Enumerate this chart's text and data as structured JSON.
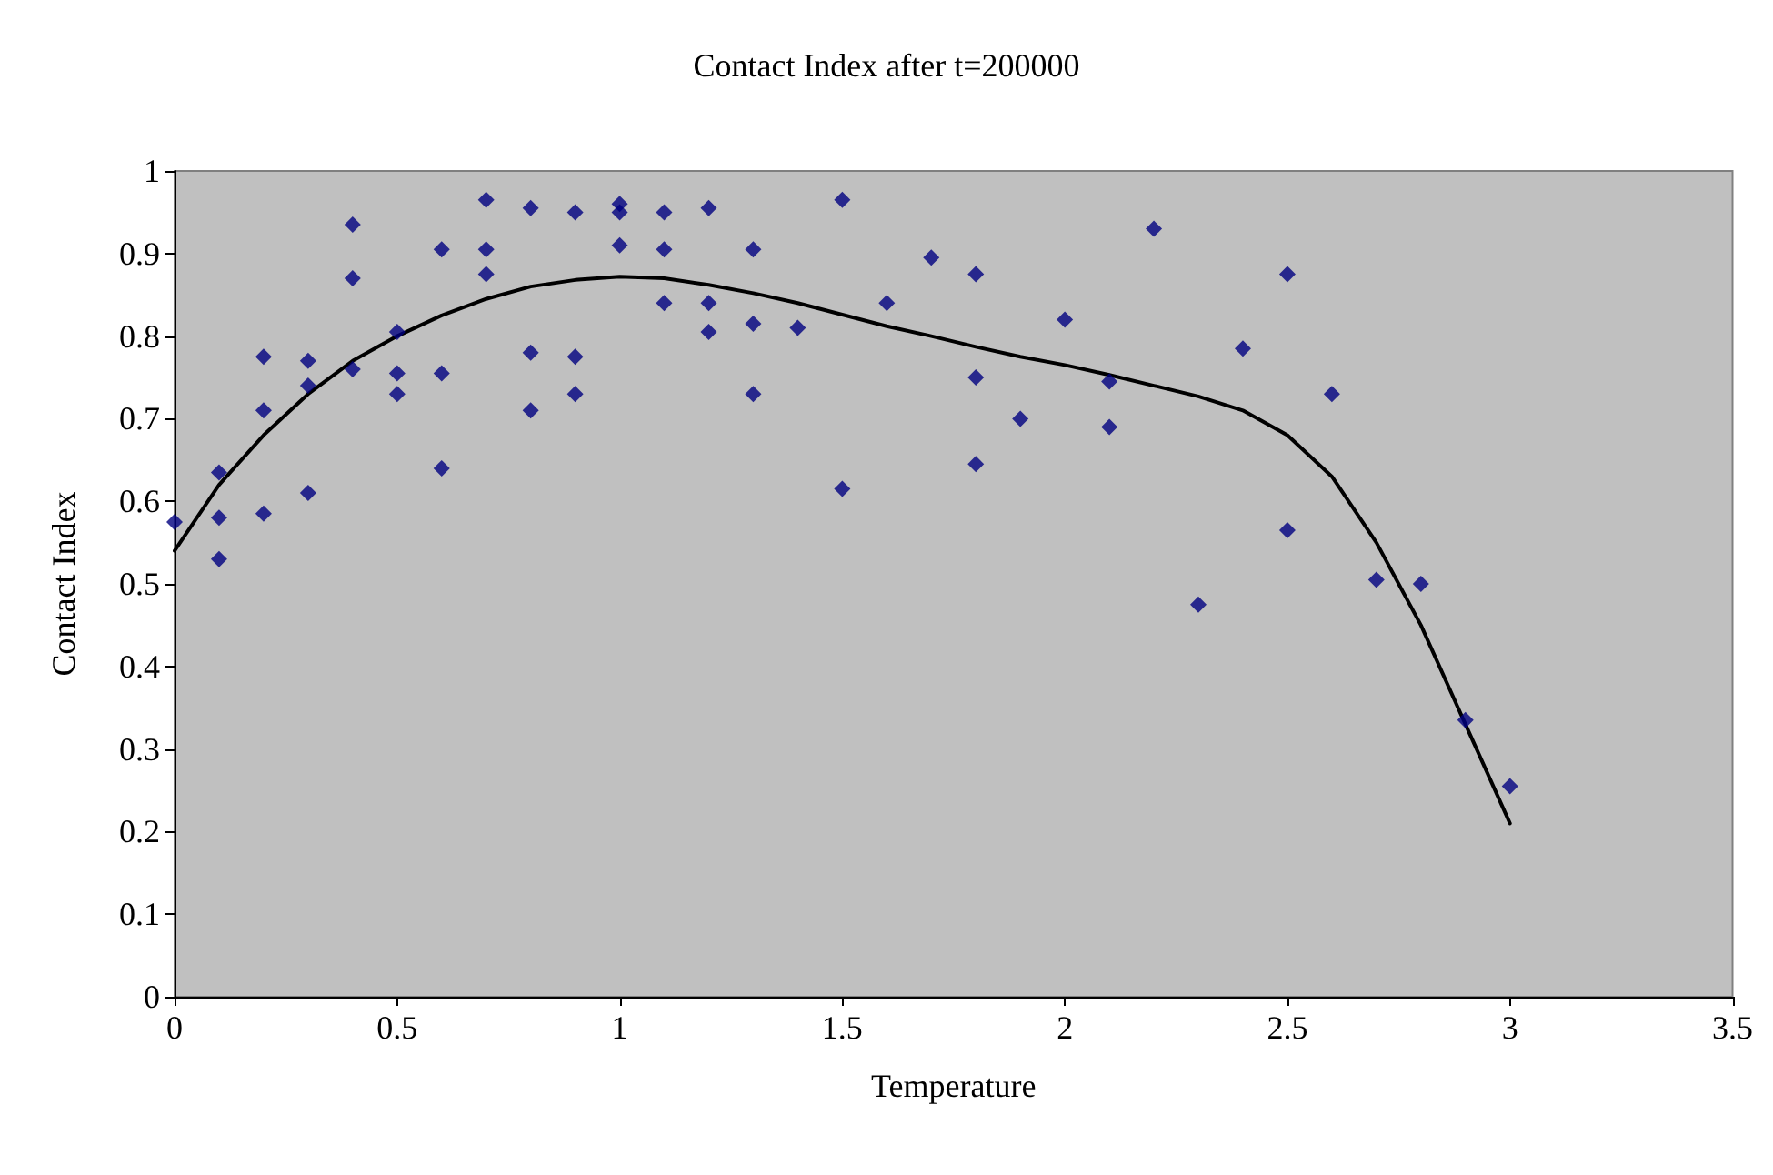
{
  "chart_data": {
    "type": "scatter",
    "title": "Contact Index after t=200000",
    "xlabel": "Temperature",
    "ylabel": "Contact Index",
    "xlim": [
      0,
      3.5
    ],
    "xticks": [
      0,
      0.5,
      1,
      1.5,
      2,
      2.5,
      3,
      3.5
    ],
    "ylim": [
      0,
      1
    ],
    "yticks": [
      0,
      0.1,
      0.2,
      0.3,
      0.4,
      0.5,
      0.6,
      0.7,
      0.8,
      0.9,
      1
    ],
    "grid": false,
    "marker": "diamond",
    "series": [
      {
        "color": "#000080",
        "x": [
          0,
          0.1,
          0.1,
          0.1,
          0.2,
          0.2,
          0.2,
          0.3,
          0.3,
          0.3,
          0.4,
          0.4,
          0.4,
          0.5,
          0.5,
          0.5,
          0.6,
          0.6,
          0.6,
          0.7,
          0.7,
          0.7,
          0.8,
          0.8,
          0.8,
          0.9,
          0.9,
          0.9,
          1.0,
          1.0,
          1.0,
          1.1,
          1.1,
          1.1,
          1.2,
          1.2,
          1.2,
          1.3,
          1.3,
          1.3,
          1.4,
          1.5,
          1.5,
          1.6,
          1.7,
          1.8,
          1.8,
          1.8,
          1.9,
          2.0,
          2.1,
          2.1,
          2.2,
          2.3,
          2.4,
          2.5,
          2.5,
          2.6,
          2.7,
          2.8,
          2.9,
          3.0
        ],
        "values": [
          0.575,
          0.635,
          0.58,
          0.53,
          0.775,
          0.71,
          0.585,
          0.77,
          0.74,
          0.61,
          0.935,
          0.87,
          0.76,
          0.805,
          0.755,
          0.73,
          0.905,
          0.755,
          0.64,
          0.965,
          0.905,
          0.875,
          0.955,
          0.78,
          0.71,
          0.95,
          0.775,
          0.73,
          0.96,
          0.95,
          0.91,
          0.95,
          0.905,
          0.84,
          0.955,
          0.84,
          0.805,
          0.905,
          0.815,
          0.73,
          0.81,
          0.965,
          0.615,
          0.84,
          0.895,
          0.875,
          0.75,
          0.645,
          0.7,
          0.82,
          0.745,
          0.69,
          0.93,
          0.475,
          0.785,
          0.875,
          0.565,
          0.73,
          0.505,
          0.5,
          0.335,
          0.255
        ]
      },
      {
        "type": "line",
        "color": "#000000",
        "line_style": "solid",
        "marker": "none",
        "x": [
          0,
          0.1,
          0.2,
          0.3,
          0.4,
          0.5,
          0.6,
          0.7,
          0.8,
          0.9,
          1.0,
          1.1,
          1.2,
          1.3,
          1.4,
          1.5,
          1.6,
          1.7,
          1.8,
          1.9,
          2.0,
          2.1,
          2.2,
          2.3,
          2.4,
          2.5,
          2.6,
          2.7,
          2.8,
          2.9,
          3.0
        ],
        "values": [
          0.54,
          0.62,
          0.68,
          0.73,
          0.77,
          0.8,
          0.825,
          0.845,
          0.86,
          0.868,
          0.872,
          0.87,
          0.862,
          0.852,
          0.84,
          0.826,
          0.812,
          0.8,
          0.787,
          0.775,
          0.765,
          0.753,
          0.74,
          0.727,
          0.71,
          0.68,
          0.63,
          0.55,
          0.45,
          0.33,
          0.21
        ]
      }
    ]
  }
}
